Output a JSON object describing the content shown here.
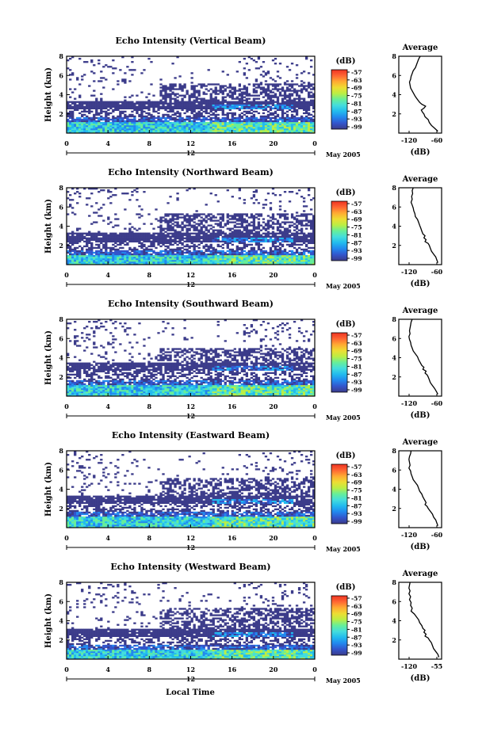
{
  "figure": {
    "xlabel": "Local Time",
    "date_label": "May 2005",
    "colors": {
      "ramp": [
        "#3b3b8a",
        "#3355cc",
        "#2288ee",
        "#22bbee",
        "#44dddd",
        "#66ee99",
        "#bbee44",
        "#eedd33",
        "#ffaa33",
        "#ff6633",
        "#ee3322"
      ]
    }
  },
  "chart_data": [
    {
      "type": "heatmap",
      "title": "Echo Intensity (Vertical Beam)",
      "ylabel": "Height (km)",
      "xlabel": "Local Time",
      "x_ticks": [
        "0",
        "4",
        "8",
        "12",
        "16",
        "20",
        "0"
      ],
      "x_day_label": "12",
      "y_ticks": [
        "2",
        "4",
        "6",
        "8"
      ],
      "xlim": [
        0,
        24
      ],
      "ylim": [
        0,
        8
      ],
      "colorbar": {
        "unit": "(dB)",
        "ticks": [
          "-57",
          "-63",
          "-69",
          "-75",
          "-81",
          "-87",
          "-93",
          "-99"
        ]
      },
      "layers": {
        "surface_top": 1.1,
        "main_cloud": [
          2.5,
          3.3
        ],
        "upper_top": 5.2
      },
      "profile": {
        "title": "Average",
        "xlabel": "(dB)",
        "x_ticks": [
          "-120",
          "-60"
        ],
        "y_ticks": [
          "2",
          "4",
          "6",
          "8"
        ],
        "x": [
          -95,
          -98,
          -100,
          -102,
          -104,
          -108,
          -110,
          -112,
          -113,
          -115,
          -114,
          -113,
          -110,
          -107,
          -104,
          -100,
          -96,
          -92,
          -85,
          -88,
          -93,
          -91,
          -88,
          -86,
          -80,
          -78,
          -74,
          -68,
          -62
        ],
        "y": [
          8.0,
          7.7,
          7.4,
          7.1,
          6.8,
          6.5,
          6.2,
          5.9,
          5.6,
          5.3,
          5.0,
          4.7,
          4.4,
          4.1,
          3.8,
          3.5,
          3.2,
          3.0,
          2.8,
          2.6,
          2.4,
          2.2,
          2.0,
          1.7,
          1.4,
          1.1,
          0.8,
          0.5,
          0.2
        ]
      }
    },
    {
      "type": "heatmap",
      "title": "Echo Intensity (Northward Beam)",
      "ylabel": "Height (km)",
      "xlabel": "Local Time",
      "x_ticks": [
        "0",
        "4",
        "8",
        "12",
        "16",
        "20",
        "0"
      ],
      "x_day_label": "12",
      "y_ticks": [
        "2",
        "4",
        "6",
        "8"
      ],
      "xlim": [
        0,
        24
      ],
      "ylim": [
        0,
        8
      ],
      "colorbar": {
        "unit": "(dB)",
        "ticks": [
          "-57",
          "-63",
          "-69",
          "-75",
          "-81",
          "-87",
          "-93",
          "-99"
        ]
      },
      "layers": {
        "surface_top": 1.0,
        "main_cloud": [
          2.4,
          3.4
        ],
        "upper_top": 5.3
      },
      "profile": {
        "title": "Average",
        "xlabel": "(dB)",
        "x_ticks": [
          "-120",
          "-60"
        ],
        "y_ticks": [
          "2",
          "4",
          "6",
          "8"
        ],
        "x": [
          -108,
          -110,
          -109,
          -111,
          -110,
          -112,
          -110,
          -108,
          -107,
          -105,
          -104,
          -100,
          -98,
          -96,
          -94,
          -92,
          -90,
          -86,
          -88,
          -84,
          -86,
          -80,
          -78,
          -76,
          -74,
          -70,
          -66,
          -64,
          -62
        ],
        "y": [
          8.0,
          7.7,
          7.4,
          7.1,
          6.8,
          6.5,
          6.2,
          5.9,
          5.6,
          5.3,
          5.0,
          4.7,
          4.4,
          4.1,
          3.8,
          3.5,
          3.2,
          3.0,
          2.8,
          2.6,
          2.4,
          2.2,
          2.0,
          1.7,
          1.4,
          1.1,
          0.8,
          0.5,
          0.2
        ]
      }
    },
    {
      "type": "heatmap",
      "title": "Echo Intensity (Southward Beam)",
      "ylabel": "Height (km)",
      "xlabel": "Local Time",
      "x_ticks": [
        "0",
        "4",
        "8",
        "12",
        "16",
        "20",
        "0"
      ],
      "x_day_label": "12",
      "y_ticks": [
        "2",
        "4",
        "6",
        "8"
      ],
      "xlim": [
        0,
        24
      ],
      "ylim": [
        0,
        8
      ],
      "colorbar": {
        "unit": "(dB)",
        "ticks": [
          "-57",
          "-63",
          "-69",
          "-75",
          "-81",
          "-87",
          "-93",
          "-99"
        ]
      },
      "layers": {
        "surface_top": 1.2,
        "main_cloud": [
          2.7,
          3.5
        ],
        "upper_top": 5.0
      },
      "profile": {
        "title": "Average",
        "xlabel": "(dB)",
        "x_ticks": [
          "-120",
          "-60"
        ],
        "y_ticks": [
          "2",
          "4",
          "6",
          "8"
        ],
        "x": [
          -110,
          -112,
          -113,
          -114,
          -115,
          -114,
          -116,
          -115,
          -113,
          -112,
          -110,
          -108,
          -104,
          -100,
          -98,
          -95,
          -92,
          -88,
          -90,
          -84,
          -86,
          -82,
          -80,
          -78,
          -76,
          -72,
          -68,
          -65,
          -62
        ],
        "y": [
          8.0,
          7.7,
          7.4,
          7.1,
          6.8,
          6.5,
          6.2,
          5.9,
          5.6,
          5.3,
          5.0,
          4.7,
          4.4,
          4.1,
          3.8,
          3.5,
          3.2,
          3.0,
          2.8,
          2.6,
          2.4,
          2.2,
          2.0,
          1.7,
          1.4,
          1.1,
          0.8,
          0.5,
          0.2
        ]
      }
    },
    {
      "type": "heatmap",
      "title": "Echo Intensity (Eastward Beam)",
      "ylabel": "Height (km)",
      "xlabel": "Local Time",
      "x_ticks": [
        "0",
        "4",
        "8",
        "12",
        "16",
        "20",
        "0"
      ],
      "x_day_label": "12",
      "y_ticks": [
        "2",
        "4",
        "6",
        "8"
      ],
      "xlim": [
        0,
        24
      ],
      "ylim": [
        0,
        8
      ],
      "colorbar": {
        "unit": "(dB)",
        "ticks": [
          "-57",
          "-63",
          "-69",
          "-75",
          "-81",
          "-87",
          "-93",
          "-99"
        ]
      },
      "layers": {
        "surface_top": 1.1,
        "main_cloud": [
          2.5,
          3.4
        ],
        "upper_top": 5.1
      },
      "profile": {
        "title": "Average",
        "xlabel": "(dB)",
        "x_ticks": [
          "-120",
          "-60"
        ],
        "y_ticks": [
          "2",
          "4",
          "6",
          "8"
        ],
        "x": [
          -112,
          -113,
          -115,
          -116,
          -115,
          -114,
          -116,
          -113,
          -112,
          -110,
          -108,
          -104,
          -100,
          -98,
          -96,
          -92,
          -90,
          -88,
          -86,
          -84,
          -86,
          -82,
          -80,
          -76,
          -72,
          -70,
          -66,
          -64,
          -62
        ],
        "y": [
          8.0,
          7.7,
          7.4,
          7.1,
          6.8,
          6.5,
          6.2,
          5.9,
          5.6,
          5.3,
          5.0,
          4.7,
          4.4,
          4.1,
          3.8,
          3.5,
          3.2,
          3.0,
          2.8,
          2.6,
          2.4,
          2.2,
          2.0,
          1.7,
          1.4,
          1.1,
          0.8,
          0.5,
          0.2
        ]
      }
    },
    {
      "type": "heatmap",
      "title": "Echo Intensity (Westward Beam)",
      "ylabel": "Height (km)",
      "xlabel": "Local Time",
      "x_ticks": [
        "0",
        "4",
        "8",
        "12",
        "16",
        "20",
        "0"
      ],
      "x_day_label": "12",
      "y_ticks": [
        "2",
        "4",
        "6",
        "8"
      ],
      "xlim": [
        0,
        24
      ],
      "ylim": [
        0,
        8
      ],
      "colorbar": {
        "unit": "(dB)",
        "ticks": [
          "-57",
          "-63",
          "-69",
          "-75",
          "-81",
          "-87",
          "-93",
          "-99"
        ]
      },
      "layers": {
        "surface_top": 1.0,
        "main_cloud": [
          2.4,
          3.2
        ],
        "upper_top": 5.4
      },
      "profile": {
        "title": "Average",
        "xlabel": "(dB)",
        "x_ticks": [
          "-120",
          "-55"
        ],
        "y_ticks": [
          "2",
          "4",
          "6",
          "8"
        ],
        "x": [
          -114,
          -115,
          -116,
          -114,
          -116,
          -113,
          -115,
          -112,
          -113,
          -110,
          -112,
          -106,
          -102,
          -98,
          -96,
          -92,
          -90,
          -86,
          -88,
          -84,
          -86,
          -80,
          -78,
          -74,
          -72,
          -70,
          -66,
          -62,
          -60
        ],
        "y": [
          8.0,
          7.7,
          7.4,
          7.1,
          6.8,
          6.5,
          6.2,
          5.9,
          5.6,
          5.3,
          5.0,
          4.7,
          4.4,
          4.1,
          3.8,
          3.5,
          3.2,
          3.0,
          2.8,
          2.6,
          2.4,
          2.2,
          2.0,
          1.7,
          1.4,
          1.1,
          0.8,
          0.5,
          0.2
        ]
      }
    }
  ]
}
